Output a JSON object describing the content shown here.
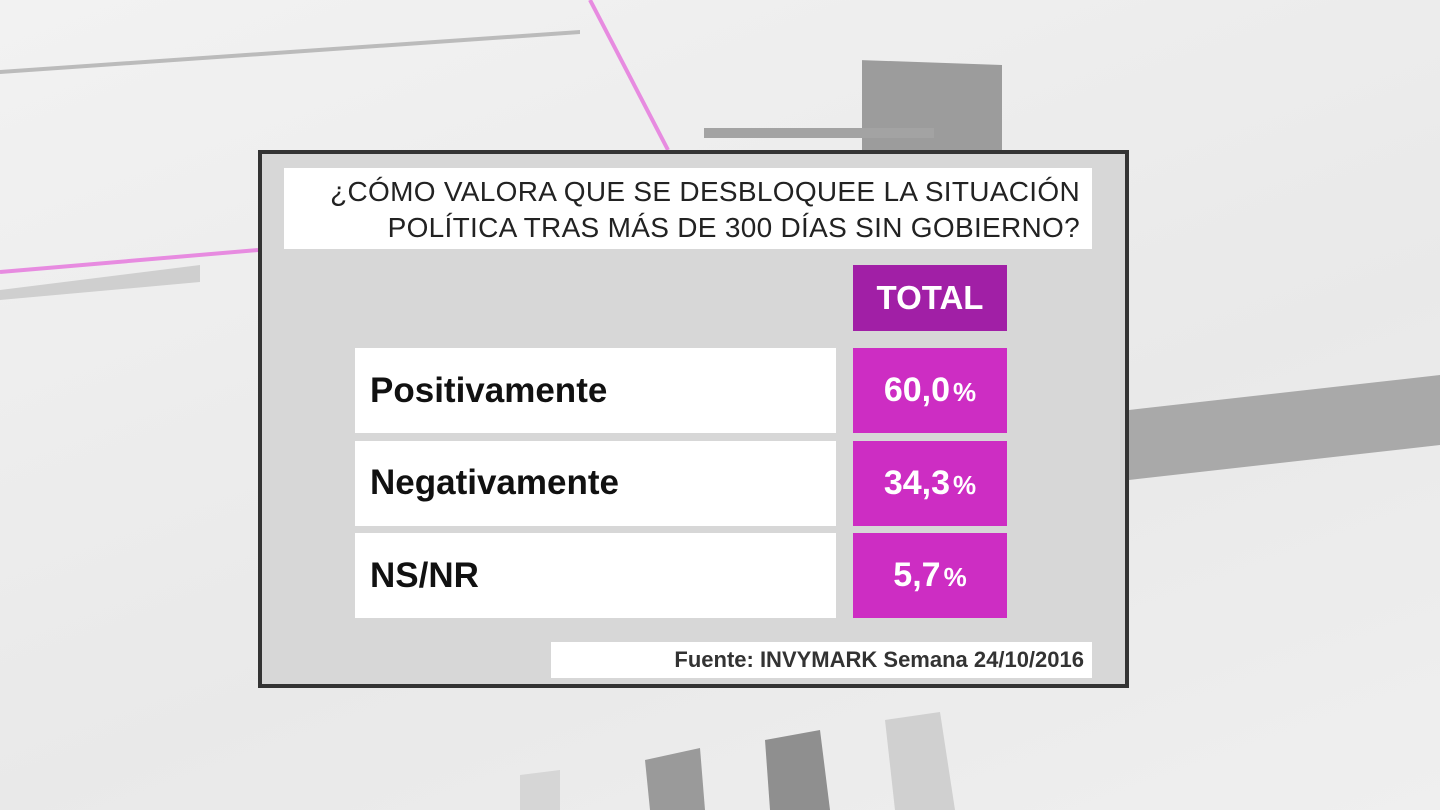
{
  "title": {
    "lines": [
      "¿CÓMO VALORA QUE SE DESBLOQUEE LA SITUACIÓN",
      "POLÍTICA TRAS MÁS DE 300 DÍAS SIN GOBIERNO?"
    ]
  },
  "table": {
    "header": "TOTAL",
    "rows": [
      {
        "label": "Positivamente",
        "value": "60,0",
        "unit": "%"
      },
      {
        "label": "Negativamente",
        "value": "34,3",
        "unit": "%"
      },
      {
        "label": "NS/NR",
        "value": "5,7",
        "unit": "%"
      }
    ]
  },
  "source": "Fuente: INVYMARK  Semana 24/10/2016"
}
